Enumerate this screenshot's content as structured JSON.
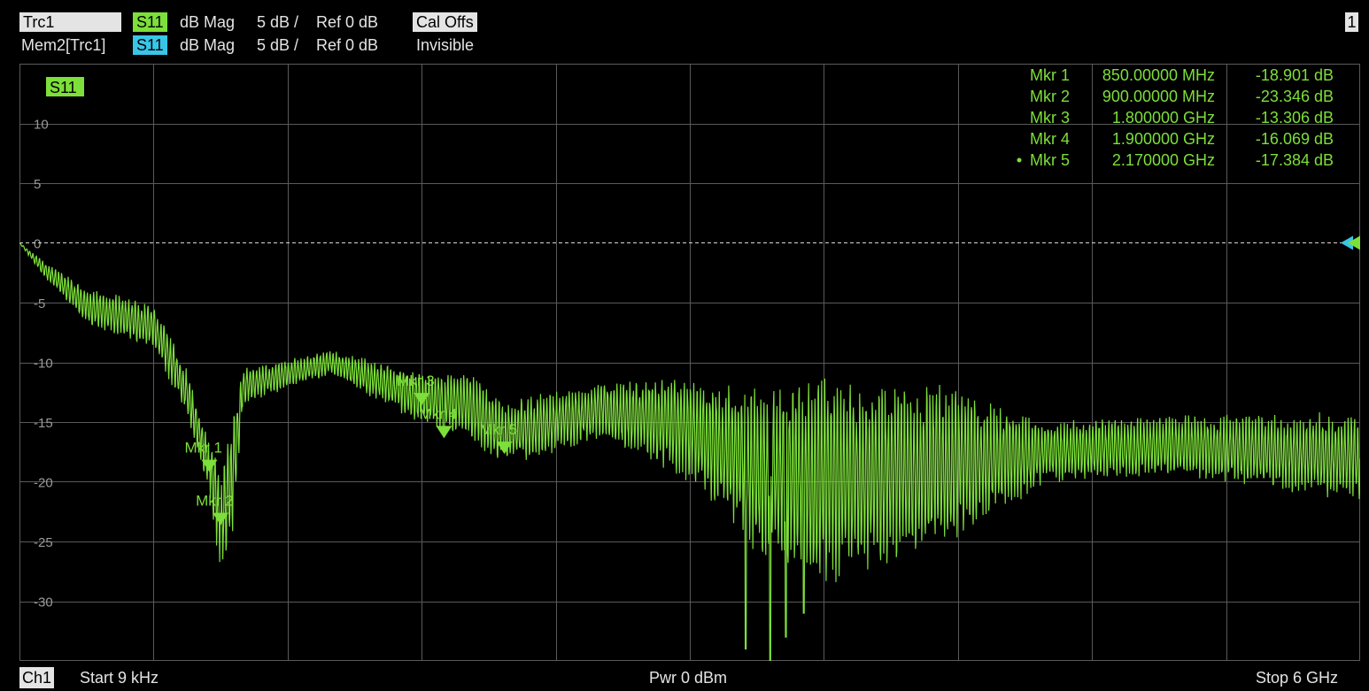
{
  "header": {
    "row1": {
      "trace": "Trc1",
      "param": "S11",
      "format": "dB Mag",
      "scale": "5 dB /",
      "ref": "Ref 0 dB",
      "status": "Cal Offs"
    },
    "row2": {
      "trace": "Mem2[Trc1]",
      "param": "S11",
      "format": "dB Mag",
      "scale": "5 dB /",
      "ref": "Ref 0 dB",
      "status": "Invisible"
    },
    "channel_number": "1"
  },
  "footer": {
    "channel": "Ch1",
    "start": "Start  9 kHz",
    "power": "Pwr  0 dBm",
    "stop": "Stop  6 GHz"
  },
  "colors": {
    "trace": "#7ddf3a",
    "memory": "#38c6e8",
    "grid": "#5a5a5a",
    "background": "#000000"
  },
  "chart_data": {
    "type": "line",
    "trace_label": "S11",
    "ylim": [
      -35,
      15
    ],
    "yticks": [
      10,
      5,
      0,
      -5,
      -10,
      -15,
      -20,
      -25,
      -30
    ],
    "ytick_labels": [
      "10",
      "5",
      "0",
      "-5",
      "-10",
      "-15",
      "-20",
      "-25",
      "-30"
    ],
    "xlim": [
      0,
      6
    ],
    "x_unit": "GHz",
    "reference_level": 0,
    "envelope": [
      {
        "f": 0.0,
        "center": 0.0,
        "amp": 0.0
      },
      {
        "f": 0.1,
        "center": -2.0,
        "amp": 0.5
      },
      {
        "f": 0.3,
        "center": -5.3,
        "amp": 1.2
      },
      {
        "f": 0.6,
        "center": -7.0,
        "amp": 1.5
      },
      {
        "f": 0.75,
        "center": -12.5,
        "amp": 1.5
      },
      {
        "f": 0.85,
        "center": -18.9,
        "amp": 2.0
      },
      {
        "f": 0.9,
        "center": -23.3,
        "amp": 3.5
      },
      {
        "f": 0.95,
        "center": -20.0,
        "amp": 4.0
      },
      {
        "f": 1.0,
        "center": -12.0,
        "amp": 1.2
      },
      {
        "f": 1.4,
        "center": -10.0,
        "amp": 0.8
      },
      {
        "f": 1.8,
        "center": -13.0,
        "amp": 1.8
      },
      {
        "f": 2.0,
        "center": -13.5,
        "amp": 2.2
      },
      {
        "f": 2.17,
        "center": -16.0,
        "amp": 2.2
      },
      {
        "f": 2.6,
        "center": -14.0,
        "amp": 1.8
      },
      {
        "f": 3.0,
        "center": -15.5,
        "amp": 3.5
      },
      {
        "f": 3.3,
        "center": -19.0,
        "amp": 5.5
      },
      {
        "f": 3.6,
        "center": -20.0,
        "amp": 7.0
      },
      {
        "f": 4.2,
        "center": -18.5,
        "amp": 5.0
      },
      {
        "f": 4.6,
        "center": -17.5,
        "amp": 2.0
      },
      {
        "f": 5.2,
        "center": -17.0,
        "amp": 2.0
      },
      {
        "f": 6.0,
        "center": -18.0,
        "amp": 3.0
      }
    ],
    "ripple_periods_per_ghz": 70,
    "deep_nulls": [
      {
        "f": 3.25,
        "value": -34.0
      },
      {
        "f": 3.36,
        "value": -35.0
      },
      {
        "f": 3.43,
        "value": -33.0
      },
      {
        "f": 3.51,
        "value": -31.0
      },
      {
        "f": 0.9,
        "value": -29.5
      }
    ],
    "markers": [
      {
        "name": "Mkr 1",
        "freq": "850.00000 MHz",
        "f": 0.85,
        "value": -18.901,
        "value_label": "-18.901 dB",
        "active": false
      },
      {
        "name": "Mkr 2",
        "freq": "900.00000 MHz",
        "f": 0.9,
        "value": -23.346,
        "value_label": "-23.346 dB",
        "active": false
      },
      {
        "name": "Mkr 3",
        "freq": "1.800000 GHz",
        "f": 1.8,
        "value": -13.306,
        "value_label": "-13.306 dB",
        "active": false
      },
      {
        "name": "Mkr 4",
        "freq": "1.900000 GHz",
        "f": 1.9,
        "value": -16.069,
        "value_label": "-16.069 dB",
        "active": false
      },
      {
        "name": "Mkr 5",
        "freq": "2.170000 GHz",
        "f": 2.17,
        "value": -17.384,
        "value_label": "-17.384 dB",
        "active": true
      }
    ]
  }
}
